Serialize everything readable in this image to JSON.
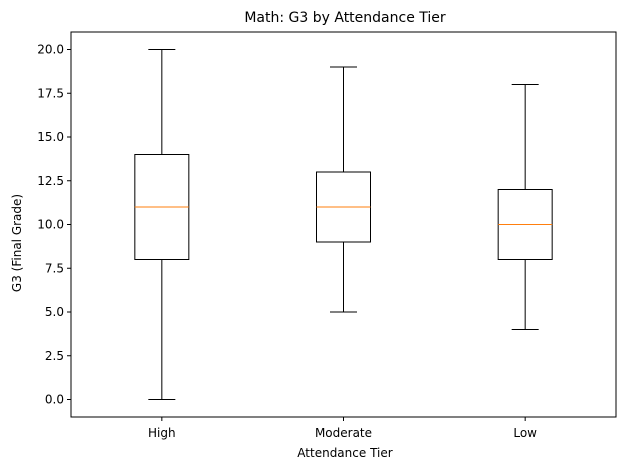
{
  "chart_data": {
    "type": "box",
    "title": "Math: G3 by Attendance Tier",
    "xlabel": "Attendance Tier",
    "ylabel": "G3 (Final Grade)",
    "ylim": [
      -1,
      21
    ],
    "yticks": [
      "0.0",
      "2.5",
      "5.0",
      "7.5",
      "10.0",
      "12.5",
      "15.0",
      "17.5",
      "20.0"
    ],
    "ytick_values": [
      0,
      2.5,
      5,
      7.5,
      10,
      12.5,
      15,
      17.5,
      20
    ],
    "grid": false,
    "categories": [
      "High",
      "Moderate",
      "Low"
    ],
    "boxes": [
      {
        "category": "High",
        "whisker_low": 0,
        "q1": 8,
        "median": 11,
        "q3": 14,
        "whisker_high": 20
      },
      {
        "category": "Moderate",
        "whisker_low": 5,
        "q1": 9,
        "median": 11,
        "q3": 13,
        "whisker_high": 19
      },
      {
        "category": "Low",
        "whisker_low": 4,
        "q1": 8,
        "median": 10,
        "q3": 12,
        "whisker_high": 18
      }
    ],
    "colors": {
      "box": "#000000",
      "median": "#ff7f0e",
      "axes": "#000000"
    }
  }
}
